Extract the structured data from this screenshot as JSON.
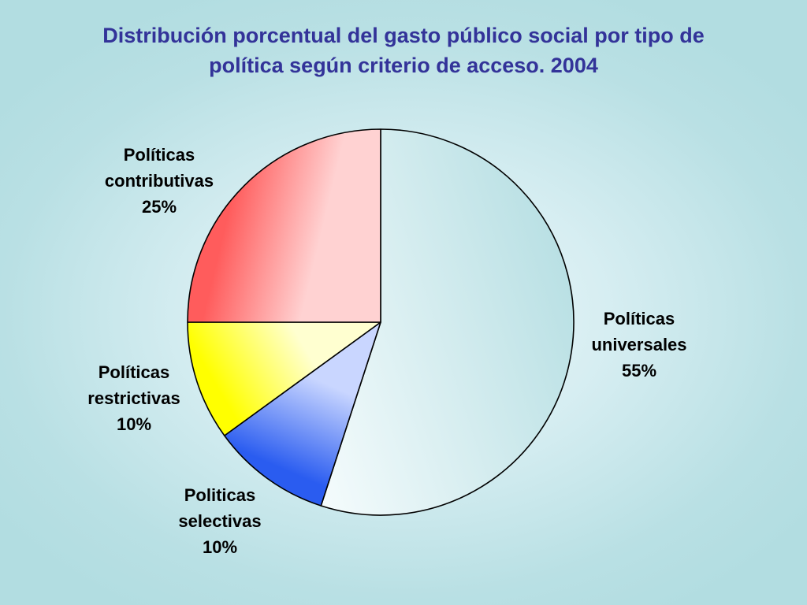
{
  "title_lines": [
    "Distribución porcentual del gasto público social por tipo de",
    "política según criterio de acceso. 2004"
  ],
  "chart_data": {
    "type": "pie",
    "title": "Distribución porcentual del gasto público social por tipo de política según criterio de acceso. 2004",
    "unit": "%",
    "slices": [
      {
        "label_lines": [
          "Políticas",
          "universales"
        ],
        "value": 55,
        "value_label": "55%",
        "color_light": "#f4fbfc",
        "color_dark": "#b9e0e4"
      },
      {
        "label_lines": [
          "Politicas",
          "selectivas"
        ],
        "value": 10,
        "value_label": "10%",
        "color_light": "#c9d6ff",
        "color_dark": "#2a5cf0"
      },
      {
        "label_lines": [
          "Políticas",
          "restrictivas"
        ],
        "value": 10,
        "value_label": "10%",
        "color_light": "#ffffd0",
        "color_dark": "#ffff00"
      },
      {
        "label_lines": [
          "Políticas",
          "contributivas"
        ],
        "value": 25,
        "value_label": "25%",
        "color_light": "#ffd2d2",
        "color_dark": "#ff5c5c"
      }
    ],
    "start": "12 o'clock",
    "direction": "clockwise",
    "legend": "none"
  }
}
